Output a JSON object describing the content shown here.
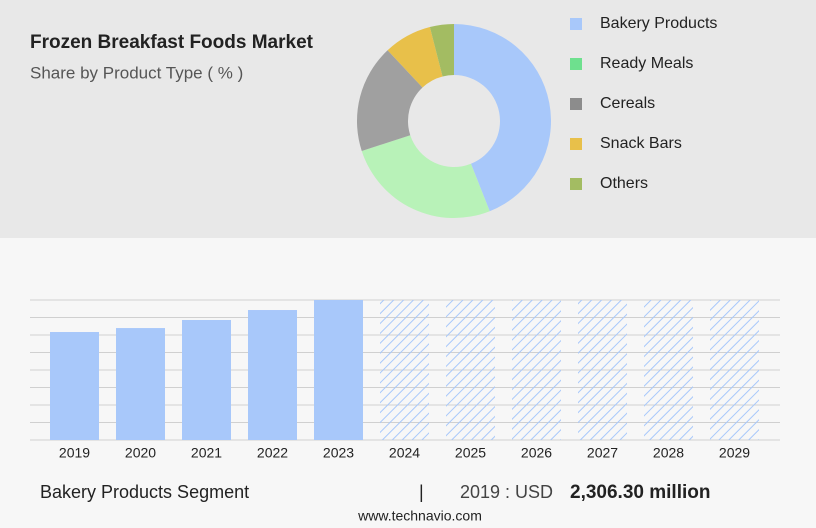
{
  "chart_data": [
    {
      "type": "donut",
      "title": "Frozen Breakfast Foods Market",
      "subtitle": "Share by Product Type ( % )",
      "categories": [
        "Bakery Products",
        "Ready Meals",
        "Cereals",
        "Snack Bars",
        "Others"
      ],
      "values": [
        44,
        26,
        18,
        8,
        4
      ],
      "colors": [
        "#a8c8fa",
        "#b8f2b8",
        "#a0a0a0",
        "#e8c04a",
        "#a3bc62"
      ],
      "legend_colors": [
        "#a8c8fa",
        "#6ee08e",
        "#8c8c8c",
        "#e8c04a",
        "#a3bc62"
      ],
      "legend": "right"
    },
    {
      "type": "bar",
      "categories": [
        "2019",
        "2020",
        "2021",
        "2022",
        "2023",
        "2024",
        "2025",
        "2026",
        "2027",
        "2028",
        "2029"
      ],
      "values": [
        2306.3,
        2391,
        2563,
        2776,
        2990,
        null,
        null,
        null,
        null,
        null,
        null
      ],
      "color": "#a8c8fa",
      "forecast_color": "#a8c8fa",
      "ylim": [
        0,
        2990
      ],
      "grid": true
    }
  ],
  "footer": {
    "segment": "Bakery Products Segment",
    "separator": "|",
    "year_label": "2019 : USD",
    "value_label": "2,306.30 million",
    "site": "www.technavio.com"
  }
}
